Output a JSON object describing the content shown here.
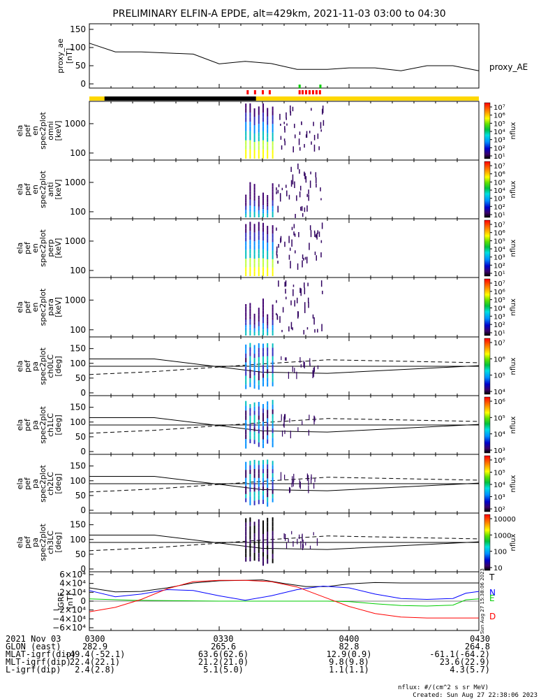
{
  "title": "PRELIMINARY ELFIN-A EPDE, alt=429km, 2021-11-03 03:00 to 04:30",
  "colors": {
    "orbit_yellow": "#FFD700",
    "eclipse_black": "#000000",
    "marker_red": "#FF0000",
    "marker_green": "#00CC00",
    "grf_T": "#000000",
    "grf_N": "#0000FF",
    "grf_E": "#00CC00",
    "grf_D": "#FF0000"
  },
  "chart_data": [
    {
      "type": "line",
      "panel": "proxy_ae",
      "ylabel": [
        "proxy_ae",
        "[nT]"
      ],
      "legend": "proxy_AE",
      "ylim": [
        0,
        150
      ],
      "yticks": [
        "150",
        "100",
        "50",
        "0"
      ],
      "x_min": [
        0,
        6,
        12,
        24,
        30,
        36,
        42,
        48,
        55,
        60,
        66,
        72,
        78,
        84,
        90
      ],
      "y": [
        112,
        88,
        88,
        82,
        55,
        62,
        56,
        40,
        40,
        44,
        44,
        36,
        50,
        50,
        36
      ]
    },
    {
      "type": "heatmap",
      "panel": "orbit_bar",
      "red_markers_min": [
        36.5,
        38.2,
        40.0,
        41.6,
        48.5,
        49.2,
        50.0,
        50.8,
        51.6,
        52.4,
        53.2
      ],
      "green_markers_min": [
        48.5,
        53.3
      ]
    },
    {
      "type": "heatmap",
      "panel": "omni",
      "ylabel": [
        "ela",
        "pef",
        "en",
        "spec2plot",
        "omni",
        "[keV]"
      ],
      "yticks": [
        "1000",
        "100"
      ],
      "colorbar_label": "nflux",
      "colorbar_ticks": [
        "10⁷",
        "10⁶",
        "10⁵",
        "10⁴",
        "10³",
        "10²",
        "10¹"
      ]
    },
    {
      "type": "heatmap",
      "panel": "anti",
      "ylabel": [
        "ela",
        "pef",
        "en",
        "spec2plot",
        "anti",
        "[keV]"
      ],
      "yticks": [
        "1000",
        "100"
      ],
      "colorbar_label": "nflux",
      "colorbar_ticks": [
        "10⁷",
        "10⁶",
        "10⁵",
        "10⁴",
        "10³",
        "10²",
        "10¹"
      ]
    },
    {
      "type": "heatmap",
      "panel": "perp",
      "ylabel": [
        "ela",
        "pef",
        "en",
        "spec2plot",
        "perp",
        "[keV]"
      ],
      "yticks": [
        "1000",
        "100"
      ],
      "colorbar_label": "nflux",
      "colorbar_ticks": [
        "10⁷",
        "10⁶",
        "10⁵",
        "10⁴",
        "10³",
        "10²",
        "10¹"
      ]
    },
    {
      "type": "heatmap",
      "panel": "para",
      "ylabel": [
        "ela",
        "pef",
        "en",
        "spec2plot",
        "para",
        "[keV]"
      ],
      "yticks": [
        "1000",
        "100"
      ],
      "colorbar_label": "nflux",
      "colorbar_ticks": [
        "10⁷",
        "10⁶",
        "10⁵",
        "10⁴",
        "10³",
        "10²",
        "10¹"
      ]
    },
    {
      "type": "heatmap",
      "panel": "ch0LC",
      "ylabel": [
        "ela",
        "pef",
        "pa",
        "spec2plot",
        "ch0LC",
        "[deg]"
      ],
      "ylim": [
        0,
        180
      ],
      "yticks": [
        "150",
        "100",
        "50",
        "0"
      ],
      "colorbar_label": "nflux",
      "colorbar_ticks": [
        "10⁷",
        "10⁶",
        "10⁵",
        "10⁴"
      ]
    },
    {
      "type": "heatmap",
      "panel": "ch1LC",
      "ylabel": [
        "ela",
        "pef",
        "pa",
        "spec2plot",
        "ch1LC",
        "[deg]"
      ],
      "ylim": [
        0,
        180
      ],
      "yticks": [
        "150",
        "100",
        "50",
        "0"
      ],
      "colorbar_label": "nflux",
      "colorbar_ticks": [
        "10⁶",
        "10⁵",
        "10⁴",
        "10³"
      ]
    },
    {
      "type": "heatmap",
      "panel": "ch2LC",
      "ylabel": [
        "ela",
        "pef",
        "pa",
        "spec2plot",
        "ch2LC",
        "[deg]"
      ],
      "ylim": [
        0,
        180
      ],
      "yticks": [
        "150",
        "100",
        "50",
        "0"
      ],
      "colorbar_label": "nflux",
      "colorbar_ticks": [
        "10⁶",
        "10⁵",
        "10⁴",
        "10³",
        "10²"
      ]
    },
    {
      "type": "heatmap",
      "panel": "ch3LC",
      "ylabel": [
        "ela",
        "pef",
        "pa",
        "spec2plot",
        "ch3LC",
        "[deg]"
      ],
      "ylim": [
        0,
        180
      ],
      "yticks": [
        "150",
        "100",
        "50",
        "0"
      ],
      "colorbar_label": "nflux",
      "colorbar_ticks": [
        "10000",
        "1000",
        "100",
        "10"
      ]
    },
    {
      "type": "line",
      "panel": "IGRF",
      "ylabel": [
        "IGRF",
        "[nT]"
      ],
      "ylim": [
        -60000,
        60000
      ],
      "yticks": [
        "6×10⁴",
        "4×10⁴",
        "2×10⁴",
        "0",
        "−2×10⁴",
        "−4×10⁴",
        "−6×10⁴"
      ],
      "legend": [
        "T",
        "N",
        "E",
        "D"
      ],
      "timestamp": "Sun Aug 27 15:38:06 2023",
      "series": [
        {
          "name": "T",
          "x_min": [
            0,
            6,
            12,
            18,
            24,
            30,
            36,
            40,
            45,
            50,
            55,
            60,
            66,
            72,
            78,
            84,
            90
          ],
          "y": [
            30000,
            21000,
            22000,
            30000,
            41000,
            46000,
            47000,
            48000,
            40000,
            33000,
            33000,
            39000,
            42000,
            41000,
            41000,
            41000,
            41000
          ]
        },
        {
          "name": "N",
          "x_min": [
            0,
            6,
            12,
            18,
            24,
            30,
            36,
            42,
            48,
            54,
            60,
            66,
            72,
            78,
            84,
            87,
            90
          ],
          "y": [
            24000,
            10000,
            16000,
            26000,
            24000,
            12000,
            2000,
            12000,
            26000,
            34000,
            30000,
            16000,
            6000,
            4000,
            6000,
            18000,
            22000
          ]
        },
        {
          "name": "E",
          "x_min": [
            0,
            10,
            20,
            30,
            40,
            45,
            50,
            55,
            60,
            66,
            72,
            78,
            84,
            87,
            90
          ],
          "y": [
            5000,
            2000,
            1000,
            0,
            0,
            0,
            0,
            0,
            -1000,
            -6000,
            -10000,
            -11000,
            -9000,
            3000,
            5000
          ]
        },
        {
          "name": "D",
          "x_min": [
            0,
            6,
            12,
            18,
            24,
            30,
            36,
            42,
            48,
            54,
            60,
            66,
            72,
            78,
            84,
            90
          ],
          "y": [
            -24000,
            -14000,
            4000,
            28000,
            44000,
            47000,
            47000,
            44000,
            32000,
            10000,
            -12000,
            -28000,
            -36000,
            -38000,
            -38000,
            -38000
          ]
        }
      ]
    }
  ],
  "footer": {
    "rows": [
      {
        "label": "2021 Nov 03",
        "values": [
          "0300",
          "0330",
          "0400",
          "0430"
        ]
      },
      {
        "label": "GLON (east)",
        "values": [
          "282.9",
          "265.6",
          "82.8",
          "264.8"
        ]
      },
      {
        "label": "MLAT-igrf(dip)",
        "values": [
          "-49.4(-52.1)",
          "63.6(62.6)",
          "12.9(0.9)",
          "-61.1(-64.2)"
        ]
      },
      {
        "label": "MLT-igrf(dip)",
        "values": [
          "22.4(22.1)",
          "21.2(21.0)",
          "9.8(9.8)",
          "23.6(22.9)"
        ]
      },
      {
        "label": "L-igrf(dip)",
        "values": [
          "2.4(2.8)",
          "5.1(5.0)",
          "1.1(1.1)",
          "4.3(5.7)"
        ]
      }
    ],
    "units_note": "nflux: #/(cm^2 s sr MeV)",
    "created": "Created: Sun Aug 27 22:38:06 2023"
  }
}
